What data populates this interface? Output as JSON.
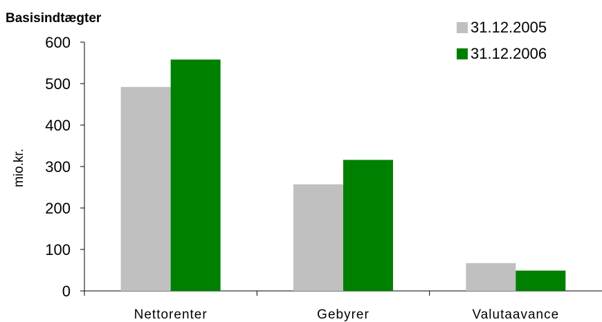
{
  "chart_data": {
    "type": "bar",
    "title": "Basisindtægter",
    "ylabel": "mio.kr.",
    "xlabel": "",
    "categories": [
      "Nettorenter",
      "Gebyrer",
      "Valutaavance"
    ],
    "series": [
      {
        "name": "31.12.2005",
        "color": "#c0c0c0",
        "values": [
          492,
          257,
          67
        ]
      },
      {
        "name": "31.12.2006",
        "color": "#008000",
        "values": [
          558,
          316,
          49
        ]
      }
    ],
    "ylim": [
      0,
      600
    ],
    "yticks": [
      "0",
      "100",
      "200",
      "300",
      "400",
      "500",
      "600"
    ],
    "grid": false,
    "legend_position": "top-right"
  }
}
